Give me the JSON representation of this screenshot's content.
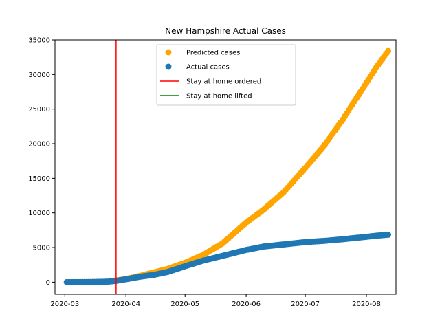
{
  "chart_data": {
    "type": "scatter",
    "title": "New Hampshire Actual Cases",
    "xlabel": "",
    "ylabel": "",
    "x_axis": {
      "type": "date",
      "range": [
        "2020-02-25",
        "2020-08-16"
      ],
      "ticks": [
        "2020-03-01",
        "2020-04-01",
        "2020-05-01",
        "2020-06-01",
        "2020-07-01",
        "2020-08-01"
      ],
      "tick_labels": [
        "2020-03",
        "2020-04",
        "2020-05",
        "2020-06",
        "2020-07",
        "2020-08"
      ]
    },
    "y_axis": {
      "range": [
        -1750,
        35000
      ],
      "ticks": [
        0,
        5000,
        10000,
        15000,
        20000,
        25000,
        30000,
        35000
      ],
      "tick_labels": [
        "0",
        "5000",
        "10000",
        "15000",
        "20000",
        "25000",
        "30000",
        "35000"
      ]
    },
    "grid": false,
    "legend_position": "top-center",
    "series": [
      {
        "name": "Predicted cases",
        "kind": "scatter",
        "color": "#ffa500",
        "points": [
          {
            "x": "2020-03-02",
            "y": 0
          },
          {
            "x": "2020-03-09",
            "y": 5
          },
          {
            "x": "2020-03-16",
            "y": 20
          },
          {
            "x": "2020-03-23",
            "y": 80
          },
          {
            "x": "2020-03-27",
            "y": 250
          },
          {
            "x": "2020-04-01",
            "y": 450
          },
          {
            "x": "2020-04-08",
            "y": 900
          },
          {
            "x": "2020-04-15",
            "y": 1400
          },
          {
            "x": "2020-04-22",
            "y": 1900
          },
          {
            "x": "2020-05-01",
            "y": 2800
          },
          {
            "x": "2020-05-10",
            "y": 3900
          },
          {
            "x": "2020-05-20",
            "y": 5600
          },
          {
            "x": "2020-06-01",
            "y": 8600
          },
          {
            "x": "2020-06-10",
            "y": 10500
          },
          {
            "x": "2020-06-20",
            "y": 13000
          },
          {
            "x": "2020-07-01",
            "y": 16500
          },
          {
            "x": "2020-07-10",
            "y": 19500
          },
          {
            "x": "2020-07-20",
            "y": 23500
          },
          {
            "x": "2020-08-01",
            "y": 28800
          },
          {
            "x": "2020-08-06",
            "y": 31000
          },
          {
            "x": "2020-08-12",
            "y": 33400
          }
        ]
      },
      {
        "name": "Actual cases",
        "kind": "scatter",
        "color": "#1f77b4",
        "points": [
          {
            "x": "2020-03-02",
            "y": 2
          },
          {
            "x": "2020-03-09",
            "y": 5
          },
          {
            "x": "2020-03-16",
            "y": 25
          },
          {
            "x": "2020-03-23",
            "y": 80
          },
          {
            "x": "2020-03-27",
            "y": 190
          },
          {
            "x": "2020-04-01",
            "y": 420
          },
          {
            "x": "2020-04-08",
            "y": 780
          },
          {
            "x": "2020-04-15",
            "y": 1050
          },
          {
            "x": "2020-04-22",
            "y": 1460
          },
          {
            "x": "2020-05-01",
            "y": 2300
          },
          {
            "x": "2020-05-10",
            "y": 3100
          },
          {
            "x": "2020-05-20",
            "y": 3800
          },
          {
            "x": "2020-06-01",
            "y": 4650
          },
          {
            "x": "2020-06-10",
            "y": 5150
          },
          {
            "x": "2020-06-20",
            "y": 5450
          },
          {
            "x": "2020-07-01",
            "y": 5780
          },
          {
            "x": "2020-07-10",
            "y": 5950
          },
          {
            "x": "2020-07-20",
            "y": 6200
          },
          {
            "x": "2020-08-01",
            "y": 6550
          },
          {
            "x": "2020-08-06",
            "y": 6700
          },
          {
            "x": "2020-08-12",
            "y": 6850
          }
        ]
      }
    ],
    "vlines": [
      {
        "name": "Stay at home ordered",
        "x": "2020-03-27",
        "color": "#ff0000",
        "visible": true
      },
      {
        "name": "Stay at home lifted",
        "x": null,
        "color": "#008000",
        "visible": false
      }
    ],
    "legend": [
      {
        "label": "Predicted cases",
        "marker": "circle",
        "color": "#ffa500"
      },
      {
        "label": "Actual cases",
        "marker": "circle",
        "color": "#1f77b4"
      },
      {
        "label": "Stay at home ordered",
        "marker": "line",
        "color": "#ff0000"
      },
      {
        "label": "Stay at home lifted",
        "marker": "line",
        "color": "#008000"
      }
    ]
  }
}
